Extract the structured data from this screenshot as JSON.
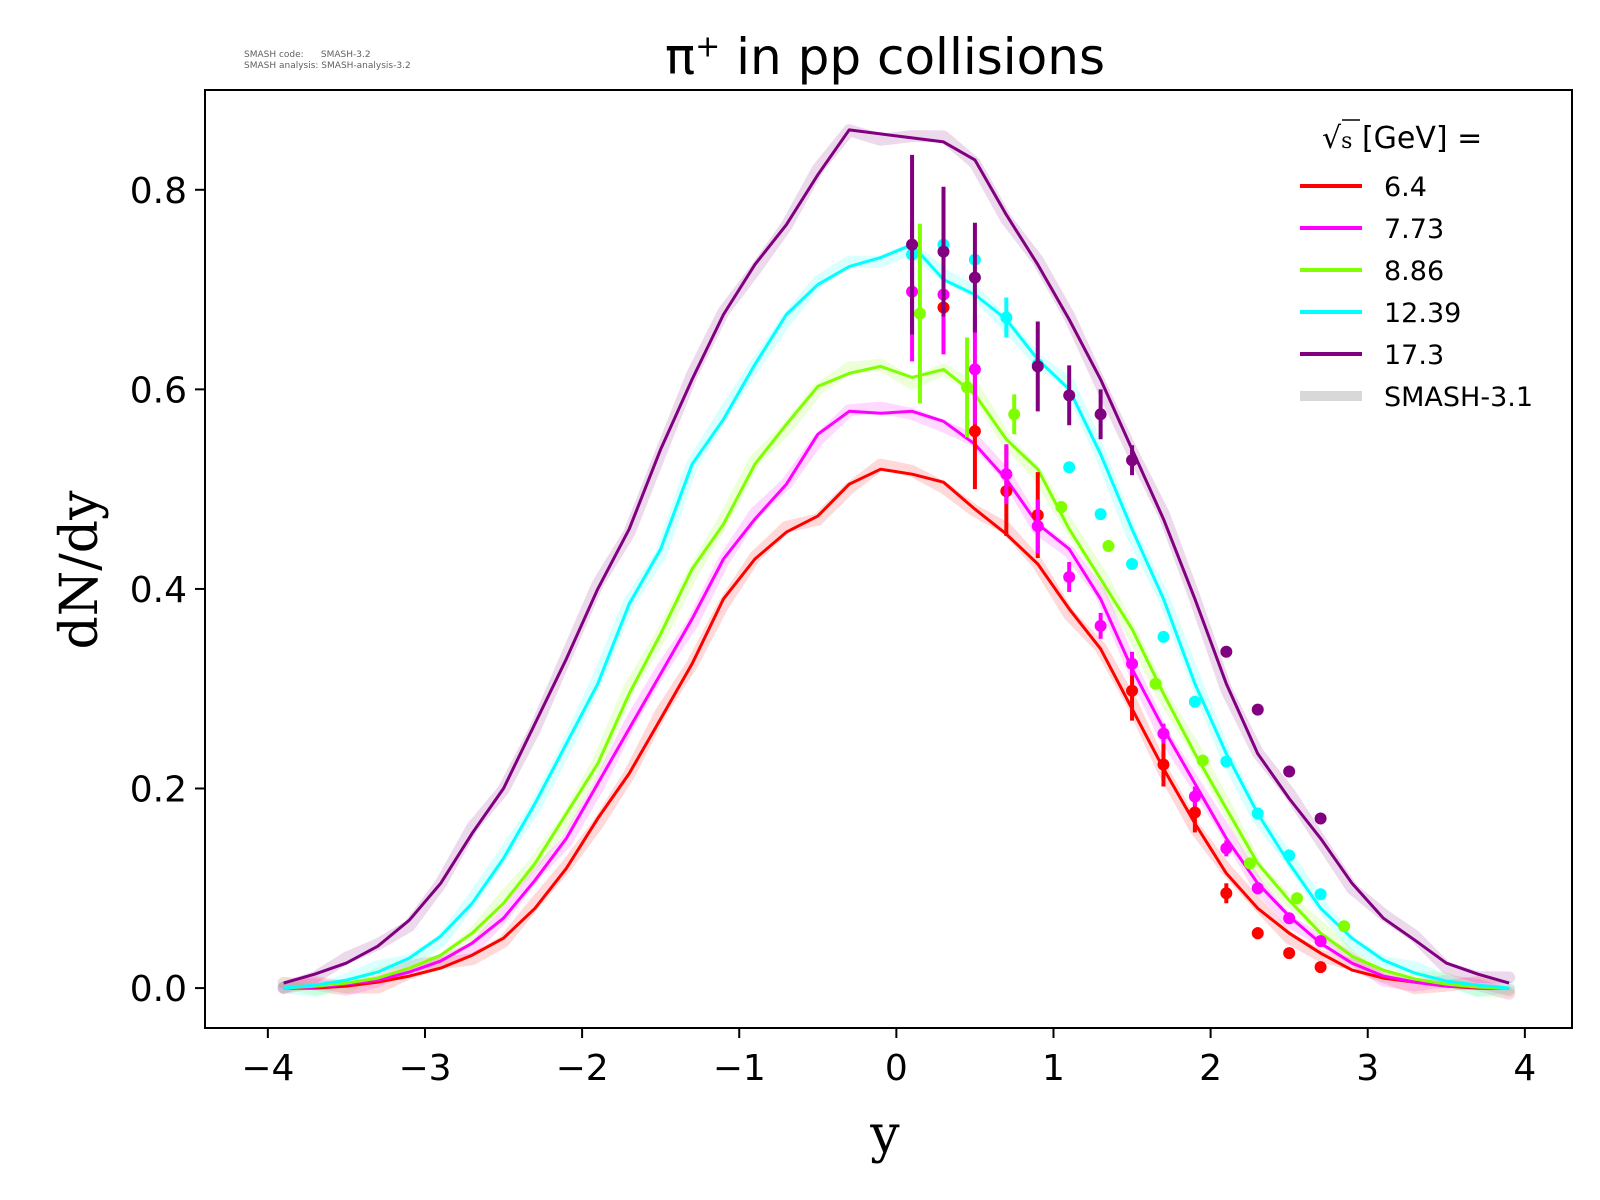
{
  "watermark": {
    "line1": "SMASH code:      SMASH-3.2",
    "line2": "SMASH analysis: SMASH-analysis-3.2"
  },
  "chart_data": {
    "type": "line",
    "title_main": "π",
    "title_sup": "+",
    "title_rest": " in pp collisions",
    "xlabel": "y",
    "ylabel": "dN/dy",
    "xlim": [
      -4.4,
      4.3
    ],
    "ylim": [
      -0.04,
      0.9
    ],
    "xticks": [
      -4,
      -3,
      -2,
      -1,
      0,
      1,
      2,
      3,
      4
    ],
    "xtick_labels": [
      "−4",
      "−3",
      "−2",
      "−1",
      "0",
      "1",
      "2",
      "3",
      "4"
    ],
    "yticks": [
      0.0,
      0.2,
      0.4,
      0.6,
      0.8
    ],
    "ytick_labels": [
      "0.0",
      "0.2",
      "0.4",
      "0.6",
      "0.8"
    ],
    "grid": false,
    "legend": {
      "position": "top-right",
      "header_sqrt": "√",
      "header_s": "s",
      "header_rest": " [GeV] =",
      "reference_label": "SMASH-3.1",
      "reference_color": "#d8d8d8"
    },
    "x": [
      -3.9,
      -3.7,
      -3.5,
      -3.3,
      -3.1,
      -2.9,
      -2.7,
      -2.5,
      -2.3,
      -2.1,
      -1.9,
      -1.7,
      -1.5,
      -1.3,
      -1.1,
      -0.9,
      -0.7,
      -0.5,
      -0.3,
      -0.1,
      0.1,
      0.3,
      0.5,
      0.7,
      0.9,
      1.1,
      1.3,
      1.5,
      1.7,
      1.9,
      2.1,
      2.3,
      2.5,
      2.7,
      2.9,
      3.1,
      3.3,
      3.5,
      3.7,
      3.9
    ],
    "series": [
      {
        "name": "6.4",
        "color": "#ff0000",
        "values": [
          0.0,
          0.0,
          0.002,
          0.006,
          0.012,
          0.02,
          0.033,
          0.05,
          0.08,
          0.12,
          0.17,
          0.215,
          0.27,
          0.325,
          0.39,
          0.43,
          0.457,
          0.473,
          0.505,
          0.52,
          0.515,
          0.507,
          0.48,
          0.455,
          0.425,
          0.38,
          0.34,
          0.28,
          0.22,
          0.165,
          0.115,
          0.08,
          0.055,
          0.035,
          0.018,
          0.01,
          0.006,
          0.002,
          0.0,
          0.0
        ],
        "points": [
          [
            0.3,
            0.682,
            0.04
          ],
          [
            0.5,
            0.558,
            0.058
          ],
          [
            0.7,
            0.498,
            0.045
          ],
          [
            0.9,
            0.474,
            0.043
          ],
          [
            1.5,
            0.298,
            0.03
          ],
          [
            1.7,
            0.224,
            0.022
          ],
          [
            1.9,
            0.176,
            0.02
          ],
          [
            2.1,
            0.095,
            0.01
          ],
          [
            2.3,
            0.055,
            0.006
          ],
          [
            2.5,
            0.035,
            0.004
          ],
          [
            2.7,
            0.021,
            0.003
          ]
        ]
      },
      {
        "name": "7.73",
        "color": "#ff00ff",
        "values": [
          0.0,
          0.001,
          0.004,
          0.008,
          0.016,
          0.027,
          0.045,
          0.07,
          0.108,
          0.15,
          0.205,
          0.26,
          0.315,
          0.37,
          0.43,
          0.47,
          0.505,
          0.555,
          0.578,
          0.576,
          0.578,
          0.568,
          0.545,
          0.51,
          0.465,
          0.44,
          0.39,
          0.32,
          0.26,
          0.205,
          0.15,
          0.105,
          0.072,
          0.045,
          0.025,
          0.012,
          0.006,
          0.002,
          0.001,
          0.0
        ],
        "points": [
          [
            0.1,
            0.698,
            0.07
          ],
          [
            0.3,
            0.695,
            0.06
          ],
          [
            0.5,
            0.62,
            0.055
          ],
          [
            0.7,
            0.515,
            0.03
          ],
          [
            0.9,
            0.463,
            0.027
          ],
          [
            1.1,
            0.412,
            0.015
          ],
          [
            1.3,
            0.363,
            0.013
          ],
          [
            1.5,
            0.325,
            0.012
          ],
          [
            1.7,
            0.255,
            0.01
          ],
          [
            1.9,
            0.192,
            0.01
          ],
          [
            2.1,
            0.14,
            0.008
          ],
          [
            2.3,
            0.1,
            0.006
          ],
          [
            2.5,
            0.07,
            0.005
          ],
          [
            2.7,
            0.047,
            0.004
          ]
        ]
      },
      {
        "name": "8.86",
        "color": "#80ff00",
        "values": [
          0.0,
          0.002,
          0.005,
          0.01,
          0.02,
          0.033,
          0.055,
          0.085,
          0.125,
          0.175,
          0.225,
          0.295,
          0.355,
          0.42,
          0.465,
          0.525,
          0.565,
          0.603,
          0.616,
          0.623,
          0.612,
          0.62,
          0.595,
          0.55,
          0.52,
          0.46,
          0.41,
          0.36,
          0.295,
          0.235,
          0.18,
          0.125,
          0.088,
          0.055,
          0.032,
          0.018,
          0.009,
          0.004,
          0.001,
          0.0
        ],
        "points": [
          [
            0.15,
            0.676,
            0.09
          ],
          [
            0.45,
            0.602,
            0.05
          ],
          [
            0.75,
            0.575,
            0.02
          ],
          [
            1.05,
            0.482,
            0.006
          ],
          [
            1.35,
            0.443,
            0.005
          ],
          [
            1.65,
            0.305,
            0.005
          ],
          [
            1.95,
            0.228,
            0.004
          ],
          [
            2.25,
            0.125,
            0.003
          ],
          [
            2.55,
            0.09,
            0.003
          ],
          [
            2.85,
            0.062,
            0.002
          ]
        ]
      },
      {
        "name": "12.39",
        "color": "#00ffff",
        "values": [
          0.0,
          0.003,
          0.008,
          0.016,
          0.03,
          0.052,
          0.085,
          0.13,
          0.185,
          0.245,
          0.305,
          0.385,
          0.44,
          0.525,
          0.57,
          0.625,
          0.675,
          0.705,
          0.723,
          0.732,
          0.745,
          0.71,
          0.695,
          0.67,
          0.63,
          0.6,
          0.535,
          0.46,
          0.39,
          0.305,
          0.235,
          0.175,
          0.125,
          0.08,
          0.05,
          0.028,
          0.015,
          0.007,
          0.003,
          0.0
        ],
        "points": [
          [
            0.1,
            0.735,
            0.005
          ],
          [
            0.3,
            0.745,
            0.005
          ],
          [
            0.5,
            0.73,
            0.005
          ],
          [
            0.7,
            0.672,
            0.02
          ],
          [
            0.9,
            0.625,
            0.005
          ],
          [
            1.1,
            0.522,
            0.004
          ],
          [
            1.3,
            0.475,
            0.004
          ],
          [
            1.5,
            0.425,
            0.004
          ],
          [
            1.7,
            0.352,
            0.004
          ],
          [
            1.9,
            0.287,
            0.003
          ],
          [
            2.1,
            0.227,
            0.003
          ],
          [
            2.3,
            0.175,
            0.003
          ],
          [
            2.5,
            0.133,
            0.003
          ],
          [
            2.7,
            0.094,
            0.002
          ]
        ]
      },
      {
        "name": "17.3",
        "color": "#800080",
        "values": [
          0.005,
          0.014,
          0.025,
          0.042,
          0.068,
          0.105,
          0.155,
          0.2,
          0.265,
          0.33,
          0.4,
          0.46,
          0.54,
          0.61,
          0.675,
          0.725,
          0.765,
          0.815,
          0.86,
          0.856,
          0.852,
          0.848,
          0.83,
          0.775,
          0.725,
          0.67,
          0.61,
          0.54,
          0.47,
          0.39,
          0.305,
          0.235,
          0.19,
          0.15,
          0.105,
          0.07,
          0.048,
          0.025,
          0.014,
          0.005
        ],
        "points": [
          [
            0.1,
            0.745,
            0.09
          ],
          [
            0.3,
            0.738,
            0.065
          ],
          [
            0.5,
            0.712,
            0.055
          ],
          [
            0.9,
            0.623,
            0.045
          ],
          [
            1.1,
            0.594,
            0.03
          ],
          [
            1.3,
            0.575,
            0.025
          ],
          [
            1.5,
            0.529,
            0.015
          ],
          [
            2.1,
            0.337,
            0.005
          ],
          [
            2.3,
            0.279,
            0.005
          ],
          [
            2.5,
            0.217,
            0.004
          ],
          [
            2.7,
            0.17,
            0.004
          ]
        ]
      }
    ]
  }
}
